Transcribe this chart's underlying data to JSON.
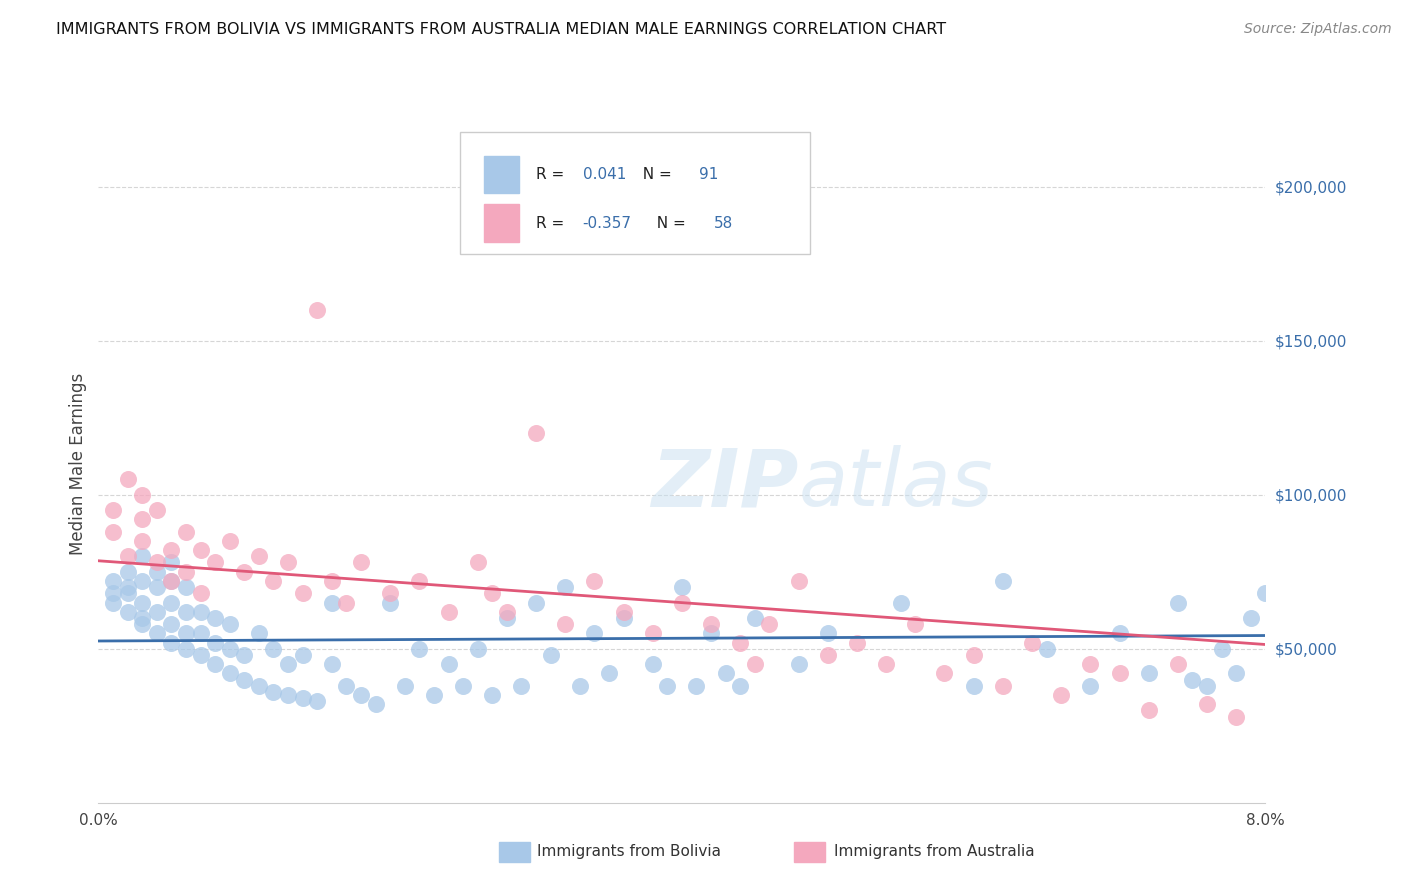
{
  "title": "IMMIGRANTS FROM BOLIVIA VS IMMIGRANTS FROM AUSTRALIA MEDIAN MALE EARNINGS CORRELATION CHART",
  "source": "Source: ZipAtlas.com",
  "ylabel": "Median Male Earnings",
  "xlim": [
    0.0,
    0.08
  ],
  "ylim": [
    0,
    220000
  ],
  "bolivia_R": "0.041",
  "bolivia_N": "91",
  "australia_R": "-0.357",
  "australia_N": "58",
  "bolivia_color": "#a8c8e8",
  "australia_color": "#f4a8be",
  "bolivia_line_color": "#3a6eaa",
  "australia_line_color": "#e05878",
  "r_value_color": "#3a6eaa",
  "watermark_color": "#c8dff0",
  "background_color": "#ffffff",
  "grid_color": "#cccccc",
  "ytick_color": "#3a6eaa",
  "bolivia_x": [
    0.001,
    0.001,
    0.001,
    0.002,
    0.002,
    0.002,
    0.002,
    0.003,
    0.003,
    0.003,
    0.003,
    0.003,
    0.004,
    0.004,
    0.004,
    0.004,
    0.005,
    0.005,
    0.005,
    0.005,
    0.005,
    0.006,
    0.006,
    0.006,
    0.006,
    0.007,
    0.007,
    0.007,
    0.008,
    0.008,
    0.008,
    0.009,
    0.009,
    0.009,
    0.01,
    0.01,
    0.011,
    0.011,
    0.012,
    0.012,
    0.013,
    0.013,
    0.014,
    0.014,
    0.015,
    0.016,
    0.016,
    0.017,
    0.018,
    0.019,
    0.02,
    0.021,
    0.022,
    0.023,
    0.024,
    0.025,
    0.026,
    0.027,
    0.028,
    0.029,
    0.03,
    0.031,
    0.032,
    0.033,
    0.034,
    0.035,
    0.036,
    0.038,
    0.039,
    0.04,
    0.041,
    0.042,
    0.043,
    0.044,
    0.045,
    0.048,
    0.05,
    0.055,
    0.06,
    0.062,
    0.065,
    0.068,
    0.07,
    0.072,
    0.074,
    0.075,
    0.076,
    0.077,
    0.078,
    0.079,
    0.08
  ],
  "bolivia_y": [
    68000,
    72000,
    65000,
    75000,
    62000,
    70000,
    68000,
    60000,
    65000,
    72000,
    58000,
    80000,
    55000,
    62000,
    70000,
    75000,
    52000,
    58000,
    65000,
    72000,
    78000,
    50000,
    55000,
    62000,
    70000,
    48000,
    55000,
    62000,
    45000,
    52000,
    60000,
    42000,
    50000,
    58000,
    40000,
    48000,
    38000,
    55000,
    36000,
    50000,
    35000,
    45000,
    34000,
    48000,
    33000,
    65000,
    45000,
    38000,
    35000,
    32000,
    65000,
    38000,
    50000,
    35000,
    45000,
    38000,
    50000,
    35000,
    60000,
    38000,
    65000,
    48000,
    70000,
    38000,
    55000,
    42000,
    60000,
    45000,
    38000,
    70000,
    38000,
    55000,
    42000,
    38000,
    60000,
    45000,
    55000,
    65000,
    38000,
    72000,
    50000,
    38000,
    55000,
    42000,
    65000,
    40000,
    38000,
    50000,
    42000,
    60000,
    68000
  ],
  "australia_x": [
    0.001,
    0.001,
    0.002,
    0.002,
    0.003,
    0.003,
    0.003,
    0.004,
    0.004,
    0.005,
    0.005,
    0.006,
    0.006,
    0.007,
    0.007,
    0.008,
    0.009,
    0.01,
    0.011,
    0.012,
    0.013,
    0.014,
    0.015,
    0.016,
    0.017,
    0.018,
    0.02,
    0.022,
    0.024,
    0.026,
    0.027,
    0.028,
    0.03,
    0.032,
    0.034,
    0.036,
    0.038,
    0.04,
    0.042,
    0.044,
    0.045,
    0.046,
    0.048,
    0.05,
    0.052,
    0.054,
    0.056,
    0.058,
    0.06,
    0.062,
    0.064,
    0.066,
    0.068,
    0.07,
    0.072,
    0.074,
    0.076,
    0.078
  ],
  "australia_y": [
    88000,
    95000,
    80000,
    105000,
    85000,
    92000,
    100000,
    78000,
    95000,
    82000,
    72000,
    88000,
    75000,
    82000,
    68000,
    78000,
    85000,
    75000,
    80000,
    72000,
    78000,
    68000,
    160000,
    72000,
    65000,
    78000,
    68000,
    72000,
    62000,
    78000,
    68000,
    62000,
    120000,
    58000,
    72000,
    62000,
    55000,
    65000,
    58000,
    52000,
    45000,
    58000,
    72000,
    48000,
    52000,
    45000,
    58000,
    42000,
    48000,
    38000,
    52000,
    35000,
    45000,
    42000,
    30000,
    45000,
    32000,
    28000
  ]
}
